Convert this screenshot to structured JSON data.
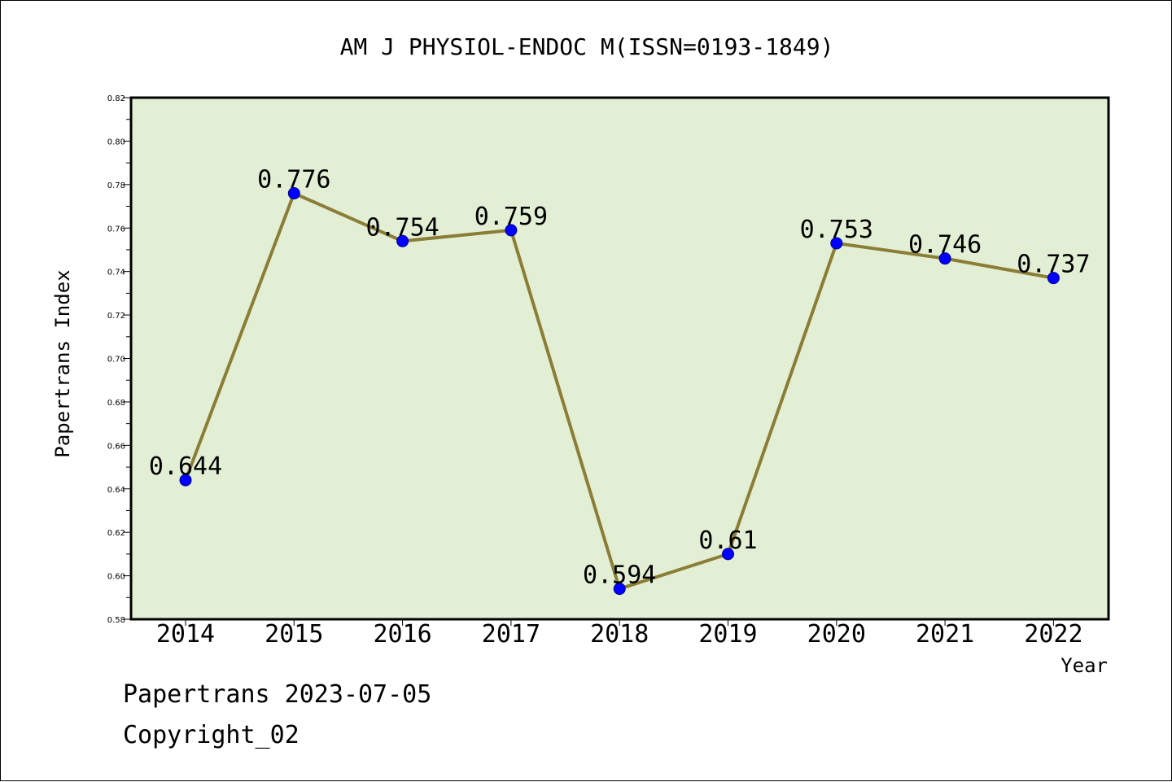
{
  "chart_data": {
    "type": "line",
    "title": "AM J PHYSIOL-ENDOC M(ISSN=0193-1849)",
    "xlabel": "Year",
    "ylabel": "Papertrans Index",
    "categories": [
      "2014",
      "2015",
      "2016",
      "2017",
      "2018",
      "2019",
      "2020",
      "2021",
      "2022"
    ],
    "values": [
      0.644,
      0.776,
      0.754,
      0.759,
      0.594,
      0.61,
      0.753,
      0.746,
      0.737
    ],
    "data_labels": [
      "0.644",
      "0.776",
      "0.754",
      "0.759",
      "0.594",
      "0.61",
      "0.753",
      "0.746",
      "0.737"
    ],
    "ylim": [
      0.58,
      0.82
    ],
    "yticks": [
      "0.58",
      "0.60",
      "0.62",
      "0.64",
      "0.66",
      "0.68",
      "0.70",
      "0.72",
      "0.74",
      "0.76",
      "0.78",
      "0.80",
      "0.82"
    ],
    "grid": false,
    "colors": {
      "plot_background": "#e2efd5",
      "line": "#8b7d35",
      "marker": "#0000ff"
    }
  },
  "footer": {
    "line1": "Papertrans 2023-07-05",
    "line2": "Copyright_02"
  }
}
